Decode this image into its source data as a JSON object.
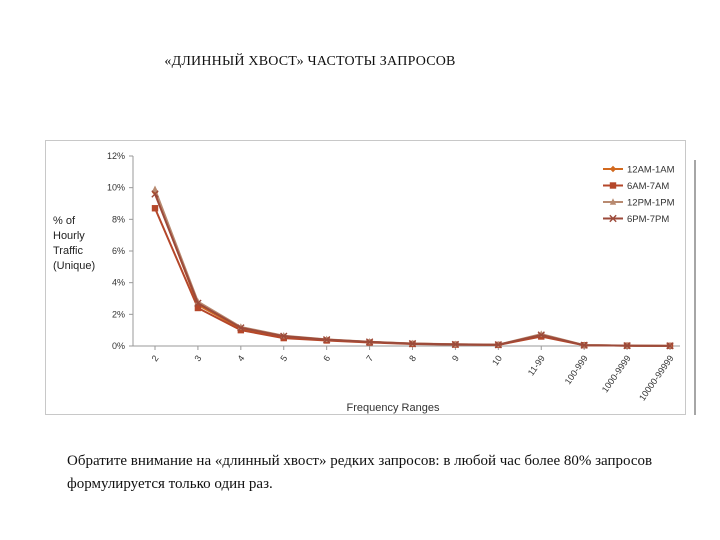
{
  "title": "«ДЛИННЫЙ ХВОСТ» ЧАСТОТЫ ЗАПРОСОВ",
  "caption": "Обратите внимание на «длинный хвост» редких запросов: в любой час более 80% запросов формулируется только один раз.",
  "chart_data": {
    "type": "line",
    "ylabel": [
      "% of",
      "Hourly",
      "Traffic",
      "(Unique)"
    ],
    "xlabel": "Frequency Ranges",
    "ylim": [
      0,
      12
    ],
    "yticks": [
      "0%",
      "2%",
      "4%",
      "6%",
      "8%",
      "10%",
      "12%"
    ],
    "ytick_values": [
      0,
      2,
      4,
      6,
      8,
      10,
      12
    ],
    "categories": [
      "2",
      "3",
      "4",
      "5",
      "6",
      "7",
      "8",
      "9",
      "10",
      "11-99",
      "100-999",
      "1000-9999",
      "10000-99999"
    ],
    "legend_position": "top-right",
    "grid": false,
    "series": [
      {
        "name": "12AM-1AM",
        "color": "#d2691e",
        "marker": "diamond",
        "values": [
          9.7,
          2.6,
          1.1,
          0.6,
          0.4,
          0.25,
          0.15,
          0.1,
          0.08,
          0.65,
          0.05,
          0.02,
          0.01
        ]
      },
      {
        "name": "6AM-7AM",
        "color": "#b5472a",
        "marker": "square",
        "values": [
          8.7,
          2.4,
          1.0,
          0.5,
          0.35,
          0.22,
          0.13,
          0.09,
          0.07,
          0.6,
          0.05,
          0.02,
          0.01
        ]
      },
      {
        "name": "12PM-1PM",
        "color": "#b88a70",
        "marker": "triangle",
        "values": [
          9.9,
          2.8,
          1.2,
          0.65,
          0.42,
          0.27,
          0.16,
          0.11,
          0.09,
          0.75,
          0.06,
          0.02,
          0.01
        ]
      },
      {
        "name": "6PM-7PM",
        "color": "#9c4a3a",
        "marker": "x",
        "values": [
          9.6,
          2.7,
          1.15,
          0.62,
          0.4,
          0.26,
          0.15,
          0.1,
          0.08,
          0.7,
          0.05,
          0.02,
          0.01
        ]
      }
    ]
  }
}
